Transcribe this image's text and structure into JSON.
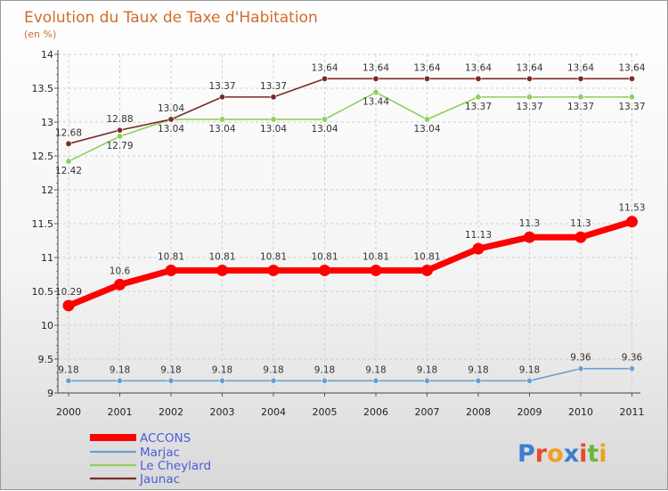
{
  "chart_data": {
    "type": "line",
    "title": "Evolution du Taux de Taxe d'Habitation",
    "subtitle": "(en %)",
    "categories": [
      "2000",
      "2001",
      "2002",
      "2003",
      "2004",
      "2005",
      "2006",
      "2007",
      "2008",
      "2009",
      "2010",
      "2011"
    ],
    "ylim": [
      9,
      14
    ],
    "yticks": [
      "9",
      "9.5",
      "10",
      "10.5",
      "11",
      "11.5",
      "12",
      "12.5",
      "13",
      "13.5",
      "14"
    ],
    "grid": true,
    "legend_position": "bottom-left",
    "series": [
      {
        "name": "ACCONS",
        "color": "#ff0000",
        "values": [
          10.29,
          10.6,
          10.81,
          10.81,
          10.81,
          10.81,
          10.81,
          10.81,
          11.13,
          11.3,
          11.3,
          11.53
        ],
        "labels": [
          "10.29",
          "10.6",
          "10.81",
          "10.81",
          "10.81",
          "10.81",
          "10.81",
          "10.81",
          "11.13",
          "11.3",
          "11.3",
          "11.53"
        ]
      },
      {
        "name": "Marjac",
        "color": "#6a9fd0",
        "values": [
          9.18,
          9.18,
          9.18,
          9.18,
          9.18,
          9.18,
          9.18,
          9.18,
          9.18,
          9.18,
          9.36,
          9.36
        ],
        "labels": [
          "9.18",
          "9.18",
          "9.18",
          "9.18",
          "9.18",
          "9.18",
          "9.18",
          "9.18",
          "9.18",
          "9.18",
          "9.36",
          "9.36"
        ]
      },
      {
        "name": "Le Cheylard",
        "color": "#8ed05a",
        "values": [
          12.42,
          12.79,
          13.04,
          13.04,
          13.04,
          13.04,
          13.44,
          13.04,
          13.37,
          13.37,
          13.37,
          13.37
        ],
        "labels": [
          "12.42",
          "12.79",
          "13.04",
          "13.04",
          "13.04",
          "13.04",
          "13.44",
          "13.04",
          "13.37",
          "13.37",
          "13.37",
          "13.37"
        ]
      },
      {
        "name": "Jaunac",
        "color": "#7a2a2a",
        "values": [
          12.68,
          12.88,
          13.04,
          13.37,
          13.37,
          13.64,
          13.64,
          13.64,
          13.64,
          13.64,
          13.64,
          13.64
        ],
        "labels": [
          "12.68",
          "12.88",
          "13.04",
          "13.37",
          "13.37",
          "13.64",
          "13.64",
          "13.64",
          "13.64",
          "13.64",
          "13.64",
          "13.64"
        ]
      }
    ]
  },
  "logo": {
    "text": "Proxiti",
    "colors": [
      "#3a7fd0",
      "#e84a2a",
      "#f0a020",
      "#3a7fd0",
      "#e84a2a",
      "#6ab83a",
      "#f0a020"
    ]
  }
}
